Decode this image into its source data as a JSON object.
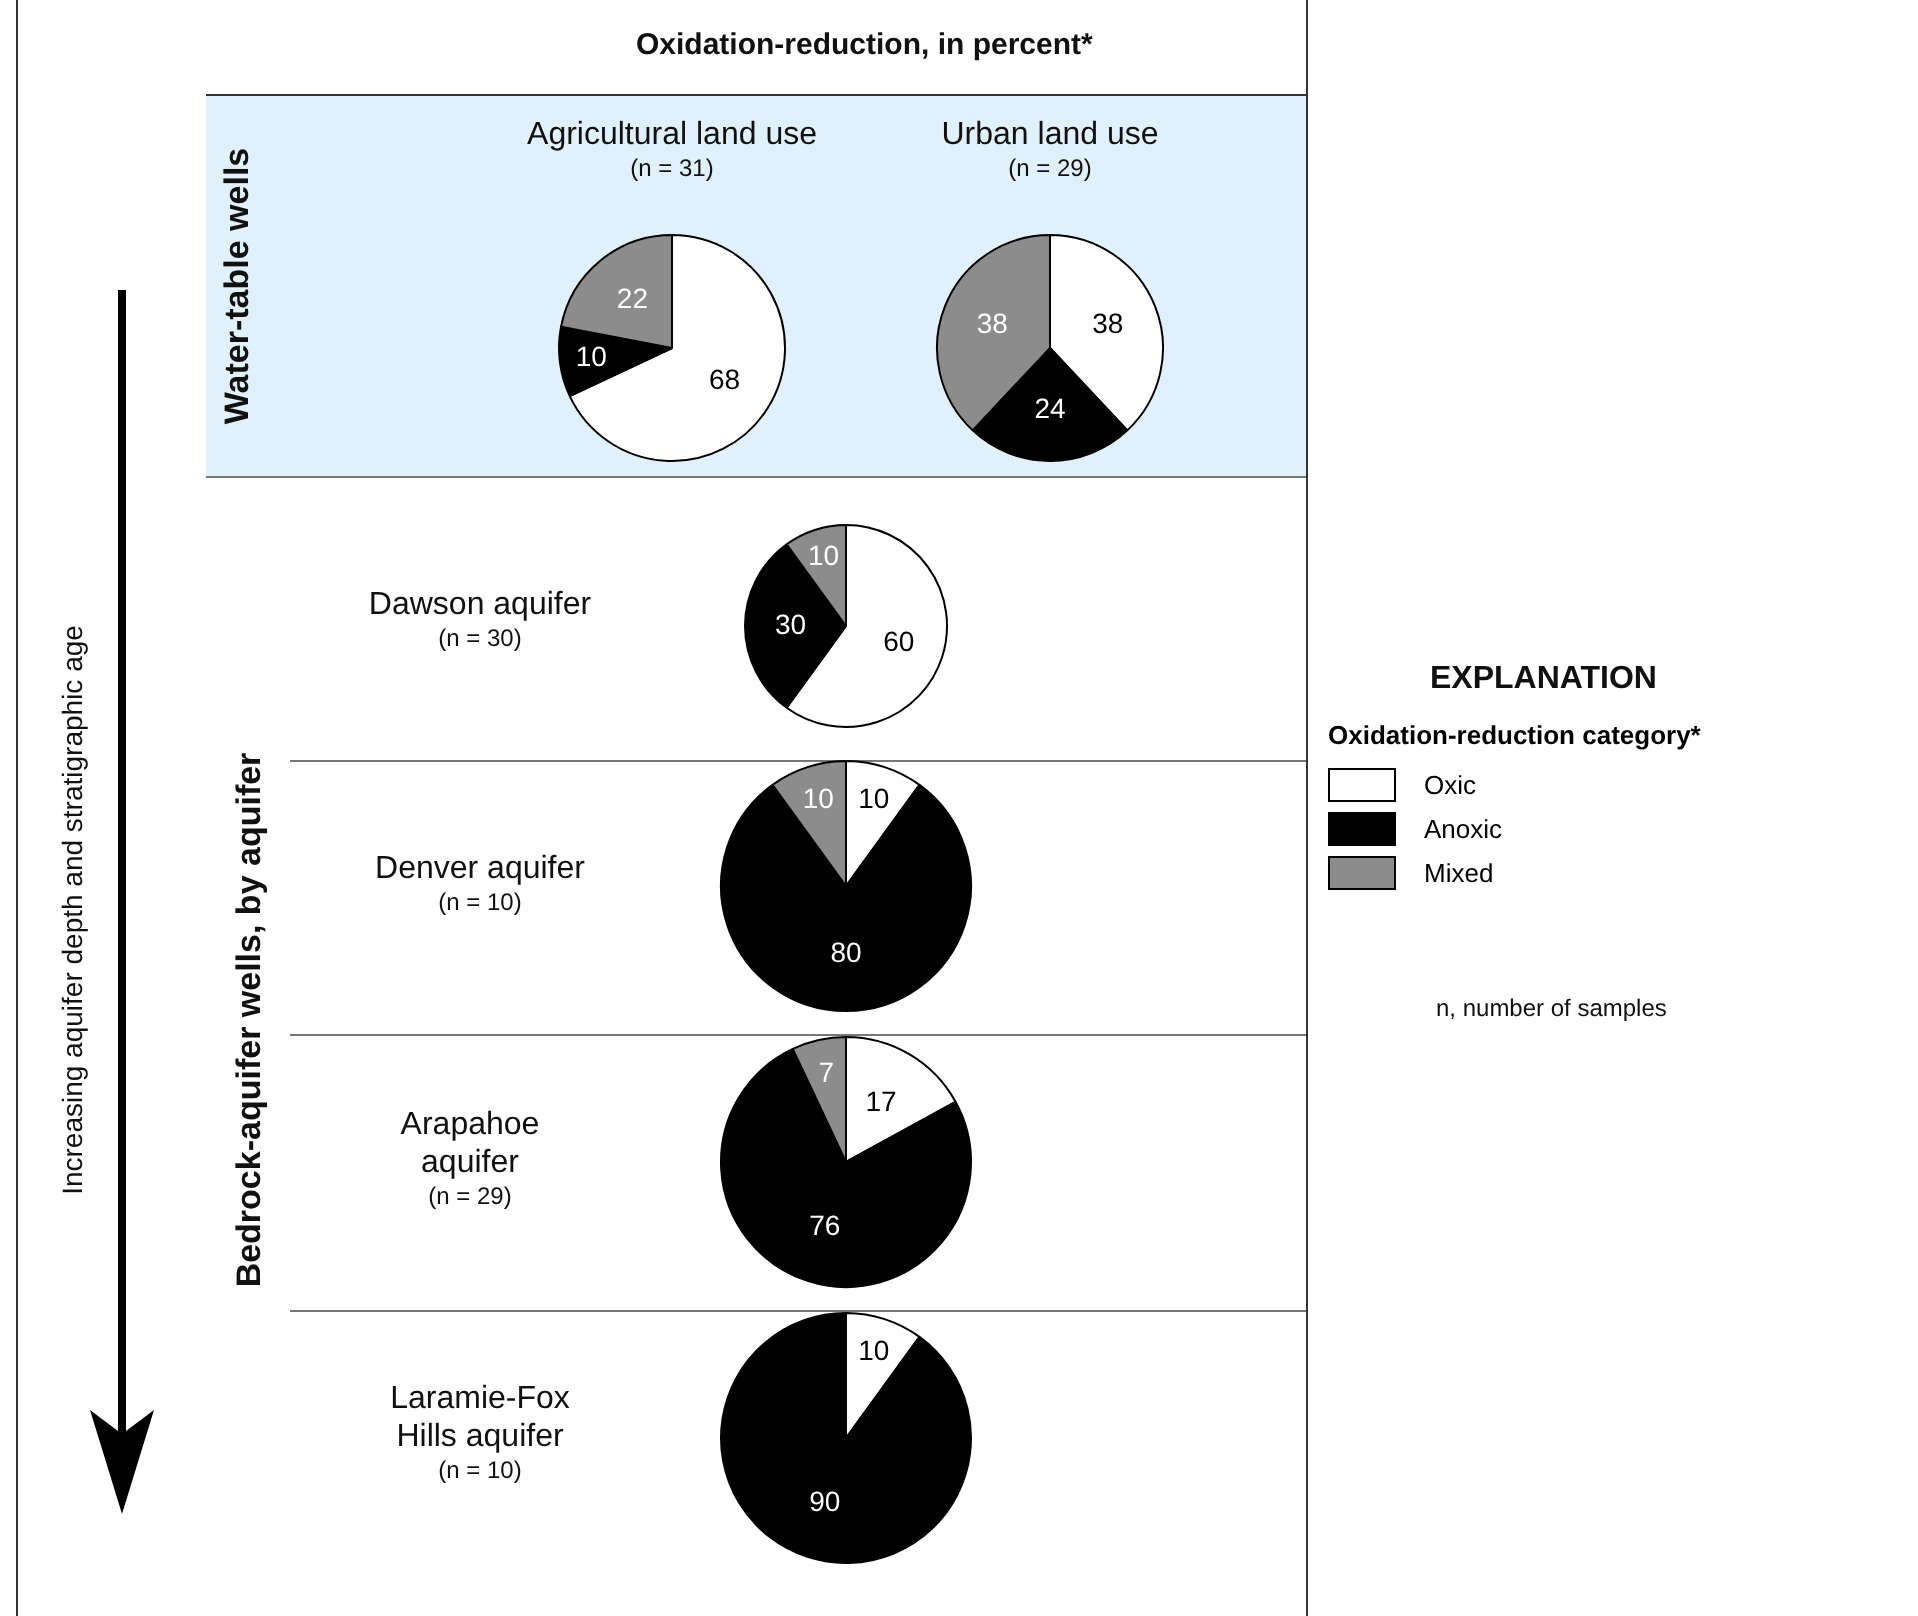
{
  "chart_data": [
    {
      "type": "pie",
      "title": "Agricultural land use",
      "subtitle": "(n = 31)",
      "categories": [
        "Oxic",
        "Anoxic",
        "Mixed"
      ],
      "values": [
        68,
        10,
        22
      ],
      "colors": [
        "#ffffff",
        "#000000",
        "#8c8c8c"
      ],
      "data_labels": true,
      "legend": "right",
      "legend_title": "Oxidation-reduction category*",
      "annotations": [
        "Oxidation-reduction, in percent*",
        "Water-table wells",
        "Bedrock-aquifer wells, by aquifer",
        "Increasing aquifer depth and stratigraphic age",
        "EXPLANATION",
        "n, number of samples"
      ]
    },
    {
      "type": "pie",
      "title": "Urban land use",
      "subtitle": "(n = 29)",
      "categories": [
        null,
        null,
        null
      ],
      "values": [
        38,
        24,
        38
      ],
      "colors": [
        "#ffffff",
        "#000000",
        "#8c8c8c"
      ],
      "data_labels": true
    },
    {
      "type": "pie",
      "title": "Dawson aquifer",
      "subtitle": "(n = 30)",
      "categories": [
        null,
        null,
        null
      ],
      "values": [
        60,
        30,
        10
      ],
      "colors": [
        "#ffffff",
        "#000000",
        "#8c8c8c"
      ],
      "data_labels": true
    },
    {
      "type": "pie",
      "title": "Denver aquifer",
      "subtitle": "(n = 10)",
      "categories": [
        null,
        null,
        null
      ],
      "values": [
        10,
        80,
        10
      ],
      "colors": [
        "#ffffff",
        "#000000",
        "#8c8c8c"
      ],
      "data_labels": true
    },
    {
      "type": "pie",
      "title": "Arapahoe aquifer",
      "subtitle": "(n = 29)",
      "categories": [
        null,
        null,
        null
      ],
      "values": [
        17,
        76,
        7
      ],
      "colors": [
        "#ffffff",
        "#000000",
        "#8c8c8c"
      ],
      "data_labels": true
    },
    {
      "type": "pie",
      "title": "Laramie-Fox Hills aquifer",
      "subtitle": "(n = 10)",
      "categories": [
        null,
        null
      ],
      "values": [
        10,
        90
      ],
      "colors": [
        "#ffffff",
        "#000000"
      ],
      "data_labels": true
    }
  ]
}
